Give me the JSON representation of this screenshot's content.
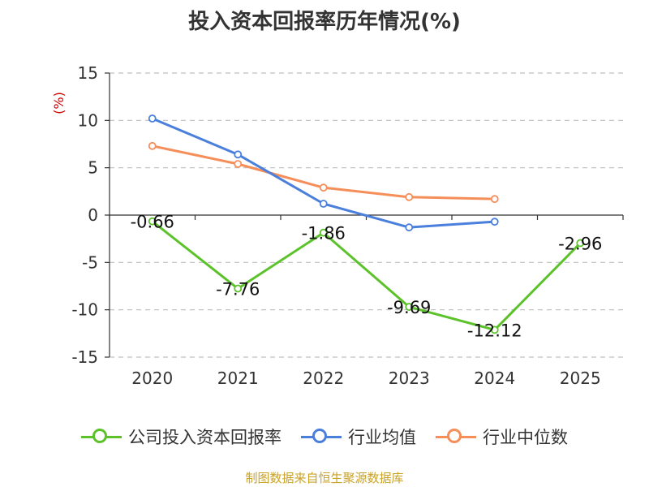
{
  "title": "投入资本回报率历年情况(%)",
  "source": "制图数据来自恒生聚源数据库",
  "colors": {
    "company": "#5cc22a",
    "industry_avg": "#4a7fdc",
    "industry_median": "#f68e5a",
    "grid": "#bfbfbf",
    "axis": "#333333",
    "unit": "#cc0000",
    "source": "#c9a227"
  },
  "chart_data": {
    "type": "line",
    "title": "投入资本回报率历年情况(%)",
    "ylabel": "(%)",
    "xlabel": "",
    "categories": [
      "2020",
      "2021",
      "2022",
      "2023",
      "2024",
      "2025"
    ],
    "ylim": [
      -15,
      15
    ],
    "yticks": [
      15,
      10,
      5,
      0,
      -5,
      -10,
      -15
    ],
    "grid": true,
    "legend_position": "bottom",
    "series": [
      {
        "name": "公司投入资本回报率",
        "values": [
          -0.66,
          -7.76,
          -1.86,
          -9.69,
          -12.12,
          -2.96
        ],
        "data_labels": [
          "-0.66",
          "-7.76",
          "-1.86",
          "-9.69",
          "-12.12",
          "-2.96"
        ]
      },
      {
        "name": "行业均值",
        "values": [
          10.2,
          6.4,
          1.2,
          -1.3,
          -0.7,
          null
        ]
      },
      {
        "name": "行业中位数",
        "values": [
          7.3,
          5.4,
          2.9,
          1.9,
          1.7,
          null
        ]
      }
    ]
  }
}
